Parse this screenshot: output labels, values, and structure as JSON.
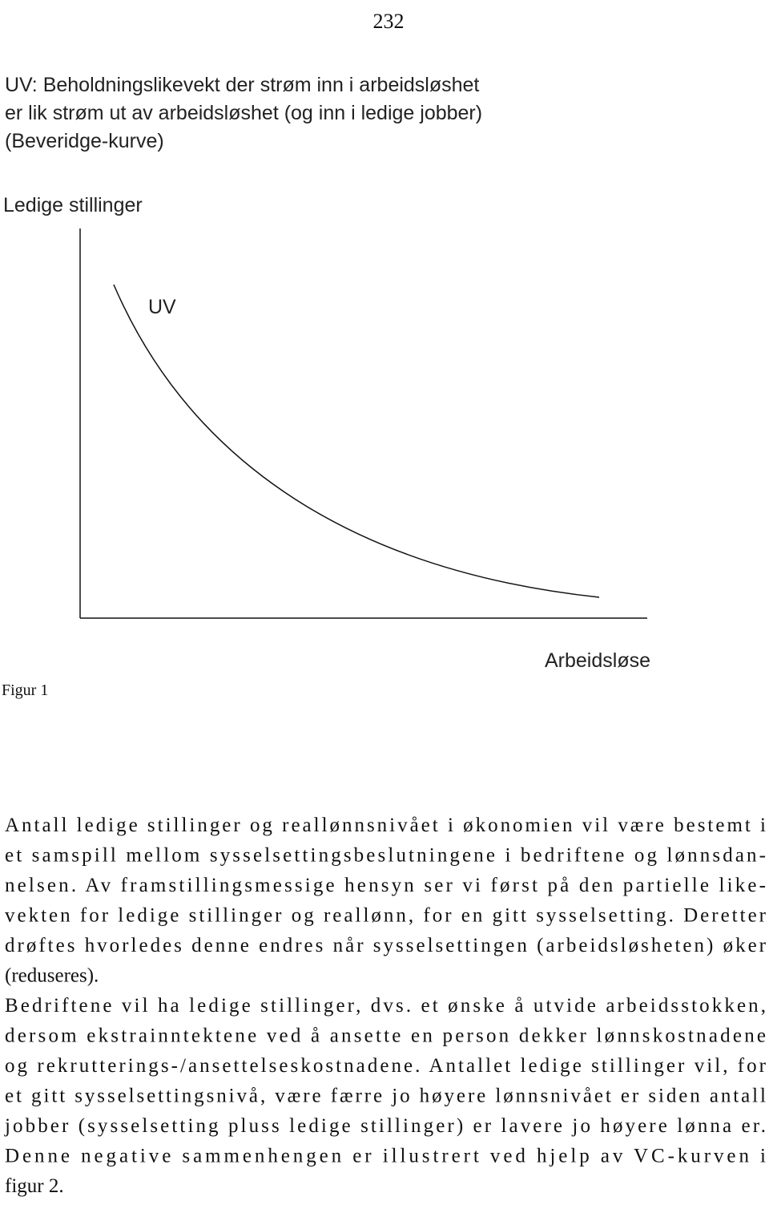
{
  "page_number": "232",
  "heading": [
    "UV: Beholdningslikevekt der strøm inn i arbeidsløshet",
    "er lik strøm ut av arbeidsløshet (og inn i ledige jobber)",
    "(Beveridge-kurve)"
  ],
  "figure": {
    "y_axis_label": "Ledige stillinger",
    "curve_label": "UV",
    "x_axis_label": "Arbeidsløse",
    "caption": "Figur 1"
  },
  "paragraphs": [
    [
      "Antall ledige stillinger og reallønnsnivået i økonomien vil være bestemt i",
      "et samspill mellom sysselsettingsbeslutningene i bedriftene og lønnsdan-",
      "nelsen. Av framstillingsmessige hensyn ser vi først på den partielle like-",
      "vekten for ledige stillinger og reallønn, for en gitt sysselsetting. Deretter",
      "drøftes hvorledes denne endres når sysselsettingen (arbeidsløsheten) øker",
      "(reduseres)."
    ],
    [
      "Bedriftene vil ha ledige stillinger, dvs. et ønske å utvide arbeidsstokken,",
      "dersom ekstrainntektene ved å ansette en person dekker lønnskostnadene",
      "og rekrutterings-/ansettelseskostnadene. Antallet ledige stillinger vil, for",
      "et gitt sysselsettingsnivå, være færre jo høyere lønnsnivået er siden antall",
      "jobber (sysselsetting pluss ledige stillinger) er lavere jo høyere lønna er.",
      "Denne negative sammenhengen er illustrert ved hjelp av VC-kurven i",
      "figur 2."
    ]
  ]
}
